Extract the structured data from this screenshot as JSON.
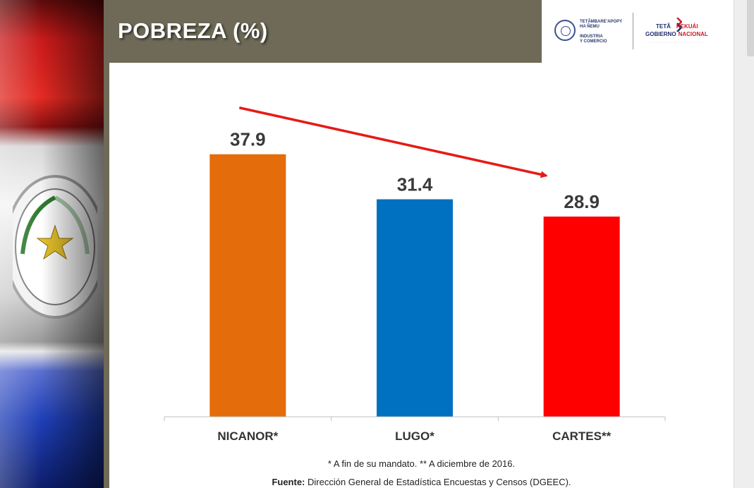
{
  "header": {
    "title": "POBREZA (%)",
    "logo_ministry": [
      "TETÃMBARE'APOPY",
      "HA ÑEMU",
      "INDUSTRIA",
      "Y COMERCIO"
    ],
    "logo_government": {
      "line1_a": "TETÃ",
      "line1_b": "REKUÁI",
      "line2_a": "GOBIERNO",
      "line2_b": "NACIONAL"
    }
  },
  "chart_data": {
    "type": "bar",
    "categories": [
      "NICANOR*",
      "LUGO*",
      "CARTES**"
    ],
    "values": [
      37.9,
      31.4,
      28.9
    ],
    "value_labels": [
      "37.9",
      "31.4",
      "28.9"
    ],
    "colors": [
      "#e46c0a",
      "#0070c0",
      "#ff0000"
    ],
    "ylim": [
      0,
      45
    ],
    "trend_arrow": {
      "from": 0,
      "to": 2,
      "color": "#e41b17"
    },
    "grid": false,
    "legend": "none"
  },
  "footnotes": {
    "note": "* A fin de su mandato. ** A diciembre de 2016.",
    "source_label": "Fuente:",
    "source_text": " Dirección General de Estadística Encuestas y Censos (DGEEC)."
  },
  "colors": {
    "title_bar": "#6e6a57",
    "axis": "#bfbfbf",
    "label_text": "#3a3a3a"
  }
}
